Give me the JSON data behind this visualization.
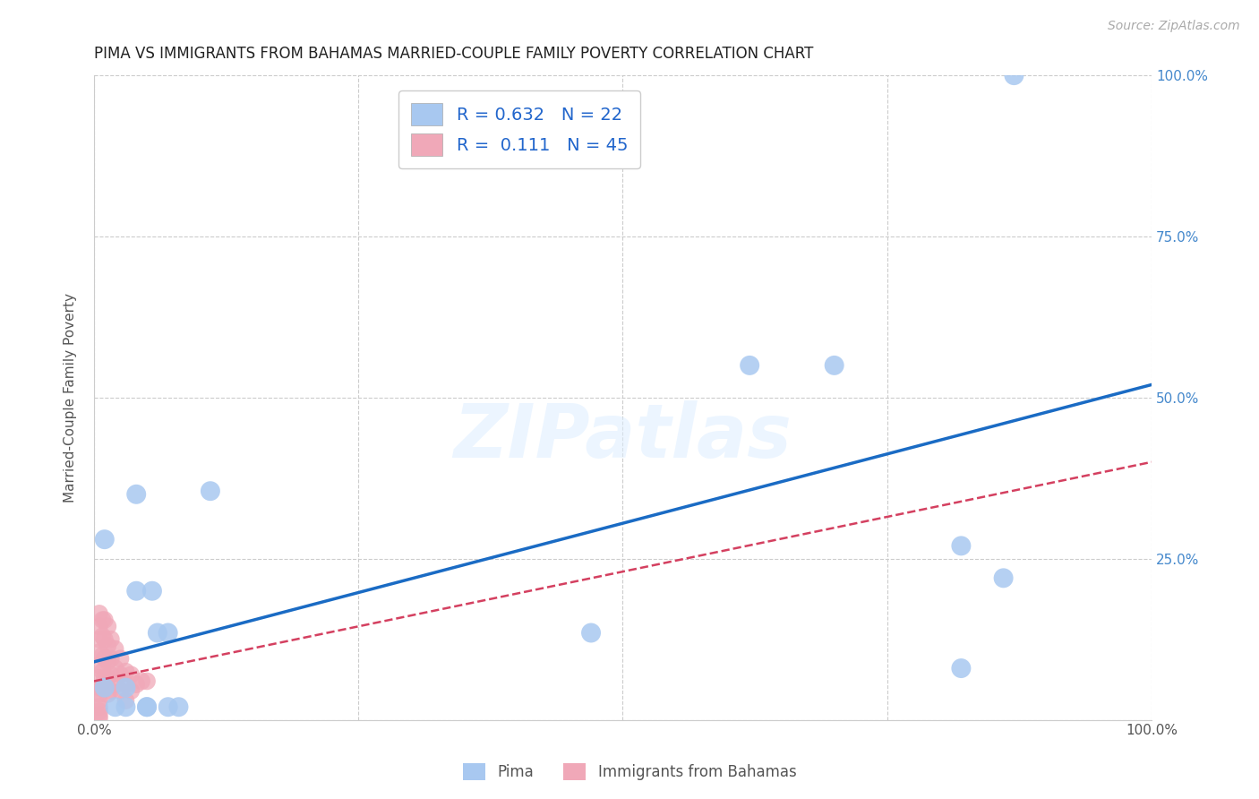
{
  "title": "PIMA VS IMMIGRANTS FROM BAHAMAS MARRIED-COUPLE FAMILY POVERTY CORRELATION CHART",
  "source": "Source: ZipAtlas.com",
  "ylabel": "Married-Couple Family Poverty",
  "xlim": [
    0,
    1.0
  ],
  "ylim": [
    0,
    1.0
  ],
  "xticks": [
    0.0,
    0.25,
    0.5,
    0.75,
    1.0
  ],
  "xticklabels": [
    "0.0%",
    "",
    "",
    "",
    "100.0%"
  ],
  "yticks": [
    0.0,
    0.25,
    0.5,
    0.75,
    1.0
  ],
  "right_yticklabels": [
    "",
    "25.0%",
    "50.0%",
    "75.0%",
    "100.0%"
  ],
  "pima_R": 0.632,
  "pima_N": 22,
  "bahamas_R": 0.111,
  "bahamas_N": 45,
  "pima_color": "#a8c8f0",
  "pima_line_color": "#1a6bc4",
  "bahamas_color": "#f0a8b8",
  "bahamas_line_color": "#d44060",
  "background_color": "#ffffff",
  "watermark_text": "ZIPatlas",
  "pima_x": [
    0.87,
    0.62,
    0.7,
    0.04,
    0.01,
    0.04,
    0.055,
    0.06,
    0.11,
    0.47,
    0.82,
    0.86,
    0.82,
    0.07,
    0.01,
    0.02,
    0.03,
    0.03,
    0.05,
    0.05,
    0.07,
    0.08
  ],
  "pima_y": [
    1.0,
    0.55,
    0.55,
    0.35,
    0.28,
    0.2,
    0.2,
    0.135,
    0.355,
    0.135,
    0.27,
    0.22,
    0.08,
    0.135,
    0.05,
    0.02,
    0.05,
    0.02,
    0.02,
    0.02,
    0.02,
    0.02
  ],
  "bahamas_x": [
    0.005,
    0.005,
    0.005,
    0.005,
    0.005,
    0.005,
    0.005,
    0.005,
    0.005,
    0.005,
    0.005,
    0.005,
    0.005,
    0.008,
    0.008,
    0.008,
    0.008,
    0.008,
    0.01,
    0.01,
    0.01,
    0.01,
    0.013,
    0.013,
    0.013,
    0.013,
    0.013,
    0.016,
    0.016,
    0.016,
    0.016,
    0.02,
    0.02,
    0.02,
    0.025,
    0.025,
    0.025,
    0.03,
    0.03,
    0.03,
    0.035,
    0.035,
    0.04,
    0.045,
    0.05
  ],
  "bahamas_y": [
    0.165,
    0.145,
    0.125,
    0.105,
    0.085,
    0.065,
    0.05,
    0.04,
    0.03,
    0.02,
    0.013,
    0.007,
    0.002,
    0.155,
    0.13,
    0.1,
    0.075,
    0.05,
    0.155,
    0.125,
    0.095,
    0.065,
    0.145,
    0.115,
    0.09,
    0.065,
    0.04,
    0.125,
    0.095,
    0.07,
    0.045,
    0.11,
    0.08,
    0.055,
    0.095,
    0.07,
    0.045,
    0.075,
    0.055,
    0.03,
    0.07,
    0.045,
    0.055,
    0.06,
    0.06
  ],
  "pima_line_x": [
    0.0,
    1.0
  ],
  "pima_line_y": [
    0.09,
    0.52
  ],
  "bahamas_line_x": [
    0.0,
    1.0
  ],
  "bahamas_line_y": [
    0.06,
    0.4
  ],
  "legend_label1": "Pima",
  "legend_label2": "Immigrants from Bahamas"
}
